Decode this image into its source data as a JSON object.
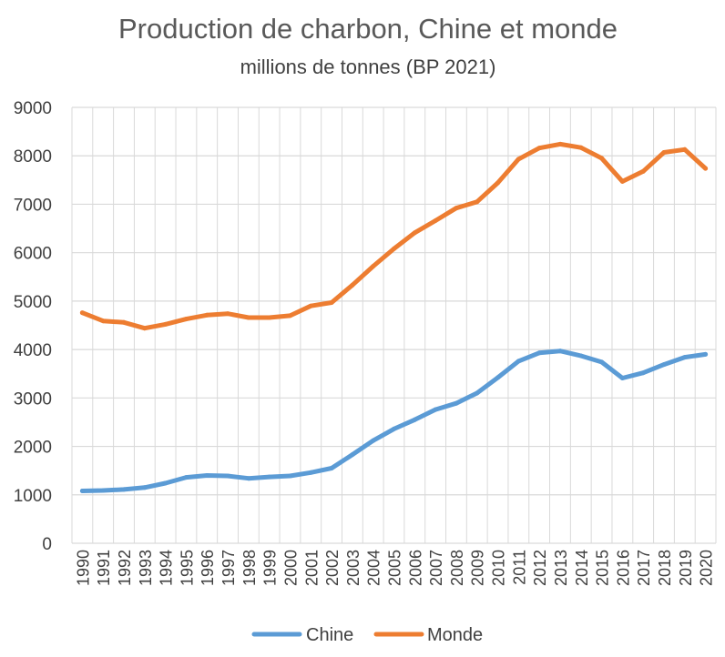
{
  "chart_data": {
    "type": "line",
    "title": "Production de charbon, Chine et monde",
    "subtitle": "millions de tonnes (BP 2021)",
    "xlabel": "",
    "ylabel": "",
    "x": [
      1990,
      1991,
      1992,
      1993,
      1994,
      1995,
      1996,
      1997,
      1998,
      1999,
      2000,
      2001,
      2002,
      2003,
      2004,
      2005,
      2006,
      2007,
      2008,
      2009,
      2010,
      2011,
      2012,
      2013,
      2014,
      2015,
      2016,
      2017,
      2018,
      2019,
      2020
    ],
    "ylim": [
      0,
      9000
    ],
    "yticks": [
      0,
      1000,
      2000,
      3000,
      4000,
      5000,
      6000,
      7000,
      8000,
      9000
    ],
    "grid": true,
    "legend_position": "bottom",
    "series": [
      {
        "name": "Chine",
        "color": "#5b9bd5",
        "values": [
          1080,
          1090,
          1110,
          1150,
          1240,
          1360,
          1400,
          1390,
          1340,
          1370,
          1390,
          1460,
          1550,
          1830,
          2120,
          2360,
          2550,
          2760,
          2890,
          3100,
          3420,
          3760,
          3930,
          3970,
          3870,
          3740,
          3410,
          3520,
          3690,
          3840,
          3900
        ]
      },
      {
        "name": "Monde",
        "color": "#ed7d31",
        "values": [
          4760,
          4590,
          4560,
          4440,
          4520,
          4630,
          4710,
          4740,
          4660,
          4660,
          4700,
          4900,
          4970,
          5330,
          5720,
          6080,
          6410,
          6660,
          6920,
          7050,
          7440,
          7930,
          8160,
          8240,
          8170,
          7950,
          7470,
          7680,
          8070,
          8130,
          7740
        ]
      }
    ]
  }
}
